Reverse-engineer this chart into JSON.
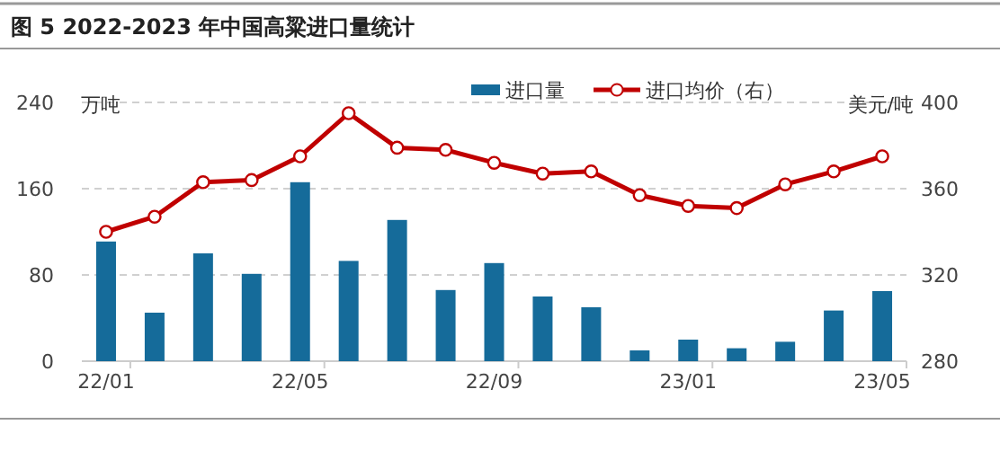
{
  "chart_data": {
    "type": "bar",
    "title": "图 5 2022-2023 年中国高粱进口量统计",
    "ylabel": "万吨",
    "y2label": "美元/吨",
    "categories": [
      "22/01",
      null,
      null,
      null,
      "22/05",
      null,
      null,
      null,
      "22/09",
      null,
      null,
      null,
      "23/01",
      null,
      null,
      null,
      "23/05"
    ],
    "series": [
      {
        "name": "进口量",
        "color": "#156b9a",
        "values": [
          111,
          45,
          100,
          81,
          166,
          93,
          131,
          66,
          91,
          60,
          50,
          10,
          20,
          12,
          18,
          47,
          65
        ]
      },
      {
        "name": "进口均价（右）",
        "type": "line",
        "axis": "y2",
        "color": "#c00000",
        "marker": "circle",
        "values": [
          340,
          347,
          363,
          364,
          375,
          395,
          379,
          378,
          372,
          367,
          368,
          357,
          352,
          351,
          362,
          368,
          375
        ]
      }
    ],
    "ylim": [
      0,
      240
    ],
    "yticks": [
      0,
      80,
      160,
      240
    ],
    "y2lim": [
      280,
      400
    ],
    "y2ticks": [
      280,
      320,
      360,
      400
    ],
    "grid": "y",
    "legend": "top right"
  }
}
